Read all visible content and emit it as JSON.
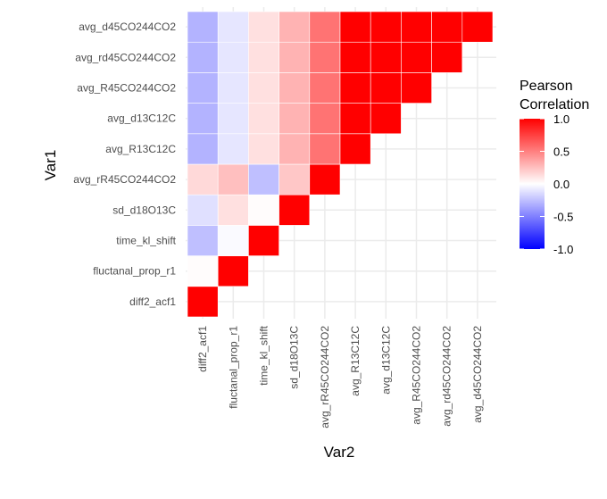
{
  "chart_data": {
    "type": "heatmap",
    "title": "",
    "xlabel": "Var2",
    "ylabel": "Var1",
    "variables": [
      "diff2_acf1",
      "fluctanal_prop_r1",
      "time_kl_shift",
      "sd_d18O13C",
      "avg_rR45CO244CO2",
      "avg_R13C12C",
      "avg_d13C12C",
      "avg_R45CO244CO2",
      "avg_rd45CO244CO2",
      "avg_d45CO244CO2"
    ],
    "cells": [
      {
        "var1": "diff2_acf1",
        "var2": "diff2_acf1",
        "value": 1.0
      },
      {
        "var1": "fluctanal_prop_r1",
        "var2": "diff2_acf1",
        "value": 0.01
      },
      {
        "var1": "time_kl_shift",
        "var2": "diff2_acf1",
        "value": -0.25
      },
      {
        "var1": "sd_d18O13C",
        "var2": "diff2_acf1",
        "value": -0.12
      },
      {
        "var1": "avg_rR45CO244CO2",
        "var2": "diff2_acf1",
        "value": 0.15
      },
      {
        "var1": "avg_R13C12C",
        "var2": "diff2_acf1",
        "value": -0.3
      },
      {
        "var1": "avg_d13C12C",
        "var2": "diff2_acf1",
        "value": -0.3
      },
      {
        "var1": "avg_R45CO244CO2",
        "var2": "diff2_acf1",
        "value": -0.3
      },
      {
        "var1": "avg_rd45CO244CO2",
        "var2": "diff2_acf1",
        "value": -0.3
      },
      {
        "var1": "avg_d45CO244CO2",
        "var2": "diff2_acf1",
        "value": -0.3
      },
      {
        "var1": "fluctanal_prop_r1",
        "var2": "fluctanal_prop_r1",
        "value": 1.0
      },
      {
        "var1": "time_kl_shift",
        "var2": "fluctanal_prop_r1",
        "value": -0.02
      },
      {
        "var1": "sd_d18O13C",
        "var2": "fluctanal_prop_r1",
        "value": 0.12
      },
      {
        "var1": "avg_rR45CO244CO2",
        "var2": "fluctanal_prop_r1",
        "value": 0.25
      },
      {
        "var1": "avg_R13C12C",
        "var2": "fluctanal_prop_r1",
        "value": -0.1
      },
      {
        "var1": "avg_d13C12C",
        "var2": "fluctanal_prop_r1",
        "value": -0.1
      },
      {
        "var1": "avg_R45CO244CO2",
        "var2": "fluctanal_prop_r1",
        "value": -0.1
      },
      {
        "var1": "avg_rd45CO244CO2",
        "var2": "fluctanal_prop_r1",
        "value": -0.1
      },
      {
        "var1": "avg_d45CO244CO2",
        "var2": "fluctanal_prop_r1",
        "value": -0.1
      },
      {
        "var1": "time_kl_shift",
        "var2": "time_kl_shift",
        "value": 1.0
      },
      {
        "var1": "sd_d18O13C",
        "var2": "time_kl_shift",
        "value": 0.01
      },
      {
        "var1": "avg_rR45CO244CO2",
        "var2": "time_kl_shift",
        "value": -0.25
      },
      {
        "var1": "avg_R13C12C",
        "var2": "time_kl_shift",
        "value": 0.12
      },
      {
        "var1": "avg_d13C12C",
        "var2": "time_kl_shift",
        "value": 0.12
      },
      {
        "var1": "avg_R45CO244CO2",
        "var2": "time_kl_shift",
        "value": 0.12
      },
      {
        "var1": "avg_rd45CO244CO2",
        "var2": "time_kl_shift",
        "value": 0.12
      },
      {
        "var1": "avg_d45CO244CO2",
        "var2": "time_kl_shift",
        "value": 0.12
      },
      {
        "var1": "sd_d18O13C",
        "var2": "sd_d18O13C",
        "value": 1.0
      },
      {
        "var1": "avg_rR45CO244CO2",
        "var2": "sd_d18O13C",
        "value": 0.22
      },
      {
        "var1": "avg_R13C12C",
        "var2": "sd_d18O13C",
        "value": 0.3
      },
      {
        "var1": "avg_d13C12C",
        "var2": "sd_d18O13C",
        "value": 0.3
      },
      {
        "var1": "avg_R45CO244CO2",
        "var2": "sd_d18O13C",
        "value": 0.3
      },
      {
        "var1": "avg_rd45CO244CO2",
        "var2": "sd_d18O13C",
        "value": 0.3
      },
      {
        "var1": "avg_d45CO244CO2",
        "var2": "sd_d18O13C",
        "value": 0.3
      },
      {
        "var1": "avg_rR45CO244CO2",
        "var2": "avg_rR45CO244CO2",
        "value": 1.0
      },
      {
        "var1": "avg_R13C12C",
        "var2": "avg_rR45CO244CO2",
        "value": 0.55
      },
      {
        "var1": "avg_d13C12C",
        "var2": "avg_rR45CO244CO2",
        "value": 0.55
      },
      {
        "var1": "avg_R45CO244CO2",
        "var2": "avg_rR45CO244CO2",
        "value": 0.55
      },
      {
        "var1": "avg_rd45CO244CO2",
        "var2": "avg_rR45CO244CO2",
        "value": 0.55
      },
      {
        "var1": "avg_d45CO244CO2",
        "var2": "avg_rR45CO244CO2",
        "value": 0.55
      },
      {
        "var1": "avg_R13C12C",
        "var2": "avg_R13C12C",
        "value": 1.0
      },
      {
        "var1": "avg_d13C12C",
        "var2": "avg_R13C12C",
        "value": 1.0
      },
      {
        "var1": "avg_R45CO244CO2",
        "var2": "avg_R13C12C",
        "value": 1.0
      },
      {
        "var1": "avg_rd45CO244CO2",
        "var2": "avg_R13C12C",
        "value": 1.0
      },
      {
        "var1": "avg_d45CO244CO2",
        "var2": "avg_R13C12C",
        "value": 1.0
      },
      {
        "var1": "avg_d13C12C",
        "var2": "avg_d13C12C",
        "value": 1.0
      },
      {
        "var1": "avg_R45CO244CO2",
        "var2": "avg_d13C12C",
        "value": 1.0
      },
      {
        "var1": "avg_rd45CO244CO2",
        "var2": "avg_d13C12C",
        "value": 1.0
      },
      {
        "var1": "avg_d45CO244CO2",
        "var2": "avg_d13C12C",
        "value": 1.0
      },
      {
        "var1": "avg_R45CO244CO2",
        "var2": "avg_R45CO244CO2",
        "value": 1.0
      },
      {
        "var1": "avg_rd45CO244CO2",
        "var2": "avg_R45CO244CO2",
        "value": 1.0
      },
      {
        "var1": "avg_d45CO244CO2",
        "var2": "avg_R45CO244CO2",
        "value": 1.0
      },
      {
        "var1": "avg_rd45CO244CO2",
        "var2": "avg_rd45CO244CO2",
        "value": 1.0
      },
      {
        "var1": "avg_d45CO244CO2",
        "var2": "avg_rd45CO244CO2",
        "value": 1.0
      },
      {
        "var1": "avg_d45CO244CO2",
        "var2": "avg_d45CO244CO2",
        "value": 1.0
      }
    ],
    "legend": {
      "title_lines": [
        "Pearson",
        "Correlation"
      ],
      "ticks": [
        1.0,
        0.5,
        0.0,
        -0.5,
        -1.0
      ],
      "tick_labels": [
        "1.0",
        "0.5",
        "0.0",
        "-0.5",
        "-1.0"
      ],
      "limits": [
        -1,
        1
      ],
      "colors": {
        "low": "#0000FF",
        "mid": "#FFFFFF",
        "high": "#FF0000"
      },
      "placement": "right"
    },
    "grid": true,
    "background": "#FFFFFF",
    "gridline_color": "#EBEBEB"
  }
}
